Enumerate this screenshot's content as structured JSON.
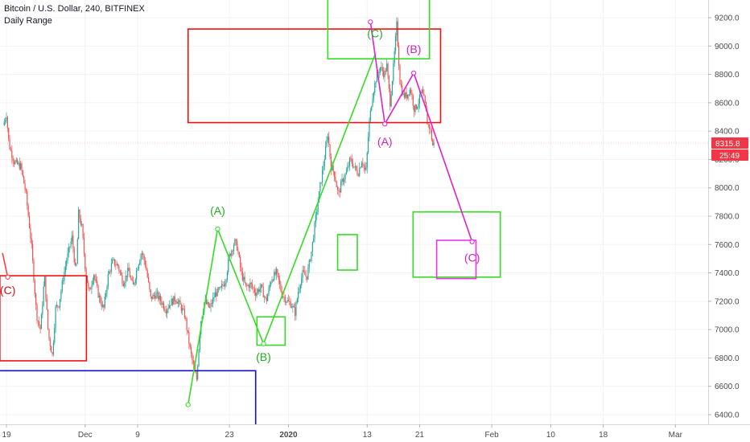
{
  "header": {
    "title": "Bitcoin / U.S. Dollar, 240, BITFINEX",
    "indicator": "Daily Range"
  },
  "chart_data": {
    "type": "candlestick",
    "ylim": [
      6350,
      9310
    ],
    "y_ticks": [
      {
        "value": 9200,
        "label": "9200.0"
      },
      {
        "value": 9000,
        "label": "9000.0"
      },
      {
        "value": 8800,
        "label": "8800.0"
      },
      {
        "value": 8600,
        "label": "8600.0"
      },
      {
        "value": 8400,
        "label": "8400.0"
      },
      {
        "value": 8200,
        "label": "8200.0"
      },
      {
        "value": 8000,
        "label": "8000.0"
      },
      {
        "value": 7800,
        "label": "7800.0"
      },
      {
        "value": 7600,
        "label": "7600.0"
      },
      {
        "value": 7400,
        "label": "7400.0"
      },
      {
        "value": 7200,
        "label": "7200.0"
      },
      {
        "value": 7000,
        "label": "7000.0"
      },
      {
        "value": 6800,
        "label": "6800.0"
      },
      {
        "value": 6600,
        "label": "6600.0"
      },
      {
        "value": 6400,
        "label": "6400.0"
      }
    ],
    "x_ticks": [
      {
        "label": "19",
        "day": 0
      },
      {
        "label": "Dec",
        "day": 12
      },
      {
        "label": "9",
        "day": 20
      },
      {
        "label": "23",
        "day": 34
      },
      {
        "label": "2020",
        "day": 43,
        "bold": true
      },
      {
        "label": "13",
        "day": 55
      },
      {
        "label": "21",
        "day": 63
      },
      {
        "label": "Feb",
        "day": 74
      },
      {
        "label": "10",
        "day": 83
      },
      {
        "label": "18",
        "day": 91
      },
      {
        "label": "Mar",
        "day": 102
      }
    ],
    "last_price": {
      "value": 8315.8,
      "label": "8315.8",
      "countdown": "25:49",
      "color": "#f23645"
    },
    "price_path": [
      [
        -0.5,
        8440
      ],
      [
        0,
        8520
      ],
      [
        0.4,
        8300
      ],
      [
        1.2,
        8180
      ],
      [
        2.2,
        8150
      ],
      [
        3,
        7950
      ],
      [
        3.8,
        7600
      ],
      [
        4.6,
        7100
      ],
      [
        5.2,
        7000
      ],
      [
        5.8,
        7380
      ],
      [
        6.4,
        6960
      ],
      [
        7,
        6820
      ],
      [
        7.5,
        7150
      ],
      [
        8,
        7180
      ],
      [
        8.6,
        7350
      ],
      [
        9.2,
        7500
      ],
      [
        10,
        7650
      ],
      [
        10.6,
        7380
      ],
      [
        11,
        7820
      ],
      [
        11.5,
        7720
      ],
      [
        12,
        7450
      ],
      [
        12.6,
        7250
      ],
      [
        13.3,
        7400
      ],
      [
        14,
        7250
      ],
      [
        14.8,
        7140
      ],
      [
        15.5,
        7380
      ],
      [
        16.2,
        7480
      ],
      [
        17,
        7450
      ],
      [
        17.8,
        7330
      ],
      [
        18.6,
        7420
      ],
      [
        19.3,
        7300
      ],
      [
        20,
        7450
      ],
      [
        20.6,
        7550
      ],
      [
        21.2,
        7460
      ],
      [
        22,
        7220
      ],
      [
        22.8,
        7250
      ],
      [
        23.6,
        7200
      ],
      [
        24.3,
        7140
      ],
      [
        25,
        7190
      ],
      [
        25.8,
        7220
      ],
      [
        26.6,
        7160
      ],
      [
        27.2,
        7100
      ],
      [
        28,
        6860
      ],
      [
        28.6,
        6720
      ],
      [
        29,
        6650
      ],
      [
        29.6,
        7050
      ],
      [
        30.2,
        7200
      ],
      [
        31,
        7150
      ],
      [
        31.8,
        7250
      ],
      [
        32.6,
        7280
      ],
      [
        33.4,
        7350
      ],
      [
        34,
        7520
      ],
      [
        34.8,
        7620
      ],
      [
        35.2,
        7580
      ],
      [
        35.8,
        7400
      ],
      [
        36.5,
        7300
      ],
      [
        37.2,
        7320
      ],
      [
        38,
        7260
      ],
      [
        38.8,
        7300
      ],
      [
        39.6,
        7200
      ],
      [
        40.4,
        7360
      ],
      [
        41.2,
        7400
      ],
      [
        42,
        7250
      ],
      [
        42.8,
        7200
      ],
      [
        43.4,
        7180
      ],
      [
        44,
        7120
      ],
      [
        44.6,
        7300
      ],
      [
        45.2,
        7400
      ],
      [
        45.8,
        7370
      ],
      [
        46.5,
        7550
      ],
      [
        47.2,
        7800
      ],
      [
        47.8,
        8000
      ],
      [
        48.4,
        8180
      ],
      [
        49,
        8380
      ],
      [
        49.5,
        8150
      ],
      [
        50,
        8100
      ],
      [
        50.6,
        7950
      ],
      [
        51.2,
        8050
      ],
      [
        51.8,
        8100
      ],
      [
        52.4,
        8200
      ],
      [
        53,
        8150
      ],
      [
        53.6,
        8100
      ],
      [
        54.2,
        8200
      ],
      [
        54.8,
        8100
      ],
      [
        55.3,
        8450
      ],
      [
        55.8,
        8650
      ],
      [
        56.4,
        8780
      ],
      [
        57,
        8850
      ],
      [
        57.6,
        8800
      ],
      [
        58,
        8860
      ],
      [
        58.5,
        8600
      ],
      [
        59,
        8850
      ],
      [
        59.5,
        9150
      ],
      [
        60,
        8750
      ],
      [
        60.5,
        8650
      ],
      [
        61,
        8650
      ],
      [
        61.6,
        8700
      ],
      [
        62.2,
        8550
      ],
      [
        62.8,
        8600
      ],
      [
        63.3,
        8680
      ],
      [
        63.8,
        8600
      ],
      [
        64.2,
        8450
      ],
      [
        64.6,
        8420
      ],
      [
        65,
        8300
      ],
      [
        65.3,
        8315.8
      ]
    ],
    "annotations": {
      "wave_lines": [
        {
          "name": "old-wave",
          "color": "#ff3c3c",
          "points": [
            [
              -0.6,
              7540
            ],
            [
              0.2,
              7370
            ]
          ]
        },
        {
          "name": "green-wave",
          "color": "#33dd22",
          "points": [
            [
              27.7,
              6470
            ],
            [
              32.2,
              7710
            ],
            [
              39.2,
              6900
            ],
            [
              56.2,
              8940
            ]
          ]
        },
        {
          "name": "magenta-wave",
          "color": "#e020d0",
          "points": [
            [
              55.5,
              9170
            ],
            [
              57.7,
              8450
            ],
            [
              62.1,
              8810
            ],
            [
              71,
              7620
            ]
          ]
        }
      ],
      "wave_points": [
        {
          "color": "#33dd22",
          "x": 27.7,
          "y": 6470
        },
        {
          "color": "#33dd22",
          "x": 32.2,
          "y": 7710
        },
        {
          "color": "#33dd22",
          "x": 39.2,
          "y": 6900
        },
        {
          "color": "#e020d0",
          "x": 55.5,
          "y": 9170
        },
        {
          "color": "#e020d0",
          "x": 57.7,
          "y": 8450
        },
        {
          "color": "#e020d0",
          "x": 62.1,
          "y": 8810
        },
        {
          "color": "#e020d0",
          "x": 71,
          "y": 7620
        },
        {
          "color": "#ff3c3c",
          "x": 0.2,
          "y": 7370
        }
      ],
      "labels": [
        {
          "text": "(C)",
          "color": "#cc1111",
          "x": 0.2,
          "y": 7250
        },
        {
          "text": "(A)",
          "color": "#22aa22",
          "x": 32.2,
          "y": 7810
        },
        {
          "text": "(B)",
          "color": "#22aa22",
          "x": 39.2,
          "y": 6780
        },
        {
          "text": "(C)",
          "color": "#22aa22",
          "x": 56.2,
          "y": 9060
        },
        {
          "text": "(A)",
          "color": "#cc22bb",
          "x": 57.7,
          "y": 8300
        },
        {
          "text": "(B)",
          "color": "#cc22bb",
          "x": 62.1,
          "y": 8950
        },
        {
          "text": "(C)",
          "color": "#cc22bb",
          "x": 71,
          "y": 7480
        }
      ],
      "boxes": [
        {
          "color": "#ee1111",
          "x0": -1,
          "y0": 7380,
          "x1": 12.2,
          "y1": 6780
        },
        {
          "color": "#ee1111",
          "x0": 27.7,
          "y0": 9120,
          "x1": 66.2,
          "y1": 8460
        },
        {
          "color": "#33dd22",
          "x0": 49,
          "y0": 9340,
          "x1": 64.5,
          "y1": 8910
        },
        {
          "color": "#33dd22",
          "x0": 38.2,
          "y0": 7090,
          "x1": 42.5,
          "y1": 6890
        },
        {
          "color": "#33dd22",
          "x0": 50.5,
          "y0": 7670,
          "x1": 53.5,
          "y1": 7420
        },
        {
          "color": "#33dd22",
          "x0": 62,
          "y0": 7830,
          "x1": 75.3,
          "y1": 7370
        },
        {
          "color": "#ee33ee",
          "x0": 65.6,
          "y0": 7630,
          "x1": 71.6,
          "y1": 7360
        }
      ],
      "support": {
        "color": "#1111cc",
        "x0": -1,
        "x1": 38,
        "y": 6710
      }
    }
  }
}
